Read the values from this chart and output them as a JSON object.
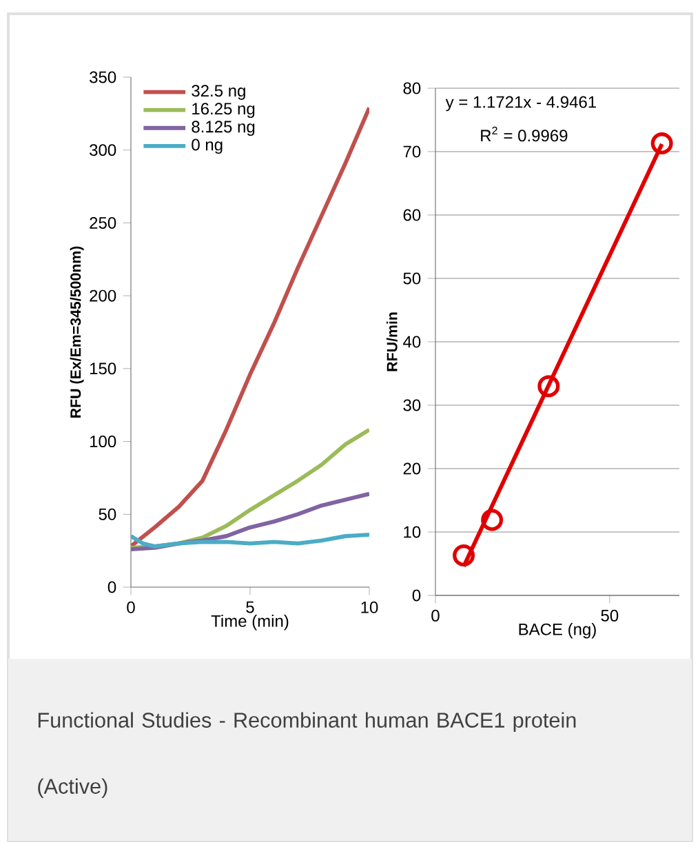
{
  "chart_data": [
    {
      "type": "line",
      "xlabel": "Time (min)",
      "ylabel": "RFU (Ex/Em=345/500nm)",
      "xlim": [
        0,
        10
      ],
      "ylim": [
        0,
        350
      ],
      "xticks": [
        0,
        5,
        10
      ],
      "yticks": [
        0,
        50,
        100,
        150,
        200,
        250,
        300,
        350
      ],
      "grid": false,
      "legend": "top left",
      "annotations": [
        "Functional Studies - Recombinant human BACE1 protein (Active)"
      ],
      "series": [
        {
          "name": "32.5 ng",
          "color": "#c0504d",
          "x": [
            0,
            1,
            2,
            3,
            4,
            5,
            6,
            7,
            8,
            9,
            10
          ],
          "values": [
            28,
            41,
            55,
            73,
            108,
            146,
            181,
            219,
            255,
            291,
            329
          ]
        },
        {
          "name": "16.25 ng",
          "color": "#9bbb59",
          "x": [
            0,
            1,
            2,
            3,
            4,
            5,
            6,
            7,
            8,
            9,
            10
          ],
          "values": [
            27,
            28,
            30,
            34,
            42,
            53,
            63,
            73,
            84,
            98,
            108
          ]
        },
        {
          "name": "8.125 ng",
          "color": "#8064a2",
          "x": [
            0,
            1,
            2,
            3,
            4,
            5,
            6,
            7,
            8,
            9,
            10
          ],
          "values": [
            26,
            27,
            30,
            32,
            35,
            41,
            45,
            50,
            56,
            60,
            64
          ]
        },
        {
          "name": "0  ng",
          "color": "#4bacc6",
          "x": [
            0,
            0.5,
            1,
            2,
            3,
            4,
            5,
            6,
            7,
            8,
            9,
            10
          ],
          "values": [
            35,
            30,
            28,
            30,
            31,
            31,
            30,
            31,
            30,
            32,
            35,
            36
          ]
        }
      ]
    },
    {
      "type": "scatter",
      "xlabel": "BACE (ng)",
      "ylabel": "RFU/min",
      "xlim": [
        0,
        70
      ],
      "ylim": [
        0,
        80
      ],
      "xticks": [
        0,
        50
      ],
      "yticks": [
        0,
        10,
        20,
        30,
        40,
        50,
        60,
        70,
        80
      ],
      "grid": "y",
      "marker": "circle",
      "annotations": [
        "y = 1.1721x - 4.9461",
        "R$^{2}$ = 0.9969"
      ],
      "series": [
        {
          "color": "#e00000",
          "x": [
            8.125,
            16.25,
            32.5,
            65
          ],
          "values": [
            6.3,
            11.9,
            33,
            71.3
          ]
        },
        {
          "type": "line",
          "marker": "none",
          "color": "#e00000",
          "x": [
            8.125,
            65
          ],
          "values": [
            4.6,
            71.2
          ]
        }
      ]
    }
  ]
}
